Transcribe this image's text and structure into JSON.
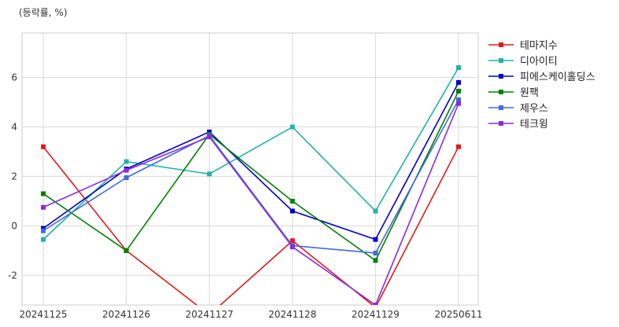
{
  "chart_data": {
    "type": "line",
    "title": "",
    "xlabel": "",
    "ylabel": "(등락률, %)",
    "categories": [
      "20241125",
      "20241126",
      "20241127",
      "20241128",
      "20241129",
      "20250611"
    ],
    "ylim": [
      -3.2,
      7.8
    ],
    "yticks": [
      -2,
      0,
      2,
      4,
      6
    ],
    "grid": true,
    "legend_position": "outside-right-top",
    "series": [
      {
        "name": "테마지수",
        "color": "#e31a1c",
        "values": [
          3.2,
          -1.0,
          -3.6,
          -0.6,
          -3.3,
          3.2
        ]
      },
      {
        "name": "디아이티",
        "color": "#20b2aa",
        "values": [
          -0.55,
          2.6,
          2.1,
          4.0,
          0.6,
          6.4
        ]
      },
      {
        "name": "피에스케이홀딩스",
        "color": "#0000cd",
        "values": [
          -0.1,
          2.3,
          3.8,
          0.6,
          -0.55,
          5.8
        ]
      },
      {
        "name": "원팩",
        "color": "#008000",
        "values": [
          1.3,
          -1.0,
          3.7,
          1.0,
          -1.4,
          5.45
        ]
      },
      {
        "name": "제우스",
        "color": "#4169e1",
        "values": [
          -0.2,
          1.95,
          3.65,
          -0.8,
          -1.1,
          5.1
        ]
      },
      {
        "name": "테크윙",
        "color": "#8a2be2",
        "values": [
          0.75,
          2.25,
          3.6,
          -0.85,
          -3.2,
          4.95
        ]
      }
    ]
  }
}
